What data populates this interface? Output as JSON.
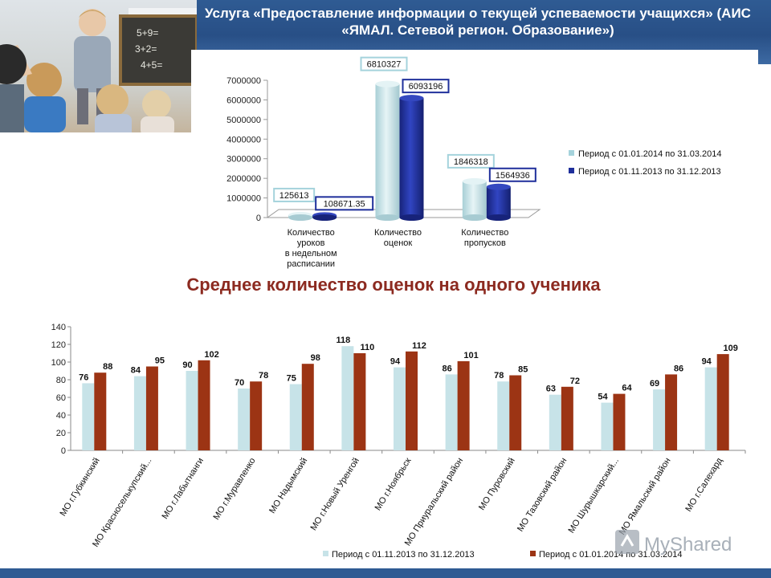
{
  "title": "Услуга «Предоставление информации о текущей успеваемости учащихся» (АИС «ЯМАЛ. Сетевой регион. Образование»)",
  "subtitle": "Среднее количество оценок на одного ученика",
  "watermark": "MyShared",
  "colors": {
    "header": "#2f5b93",
    "light_series": "#c7e3e8",
    "dark_series_3d": "#1f2f9b",
    "dark_series_bar": "#9c3414",
    "subtitle": "#8c2a20"
  },
  "chart_data": [
    {
      "type": "bar",
      "categories": [
        "Количество уроков в недельном расписании",
        "Количество оценок",
        "Количество пропусков"
      ],
      "category_lines": [
        [
          "Количество",
          "уроков",
          "в недельном",
          "расписании"
        ],
        [
          "Количество",
          "оценок"
        ],
        [
          "Количество",
          "пропусков"
        ]
      ],
      "series": [
        {
          "name": "Период с  01.01.2014  по 31.03.2014",
          "values": [
            125613,
            6810327,
            1846318
          ],
          "labels": [
            "125613",
            "6810327",
            "1846318"
          ],
          "color": "#c7e3e8"
        },
        {
          "name": "Период с 01.11.2013  по 31.12.2013",
          "values": [
            108671.35,
            6093196,
            1564936
          ],
          "labels": [
            "108671.35",
            "6093196",
            "1564936"
          ],
          "color": "#1f2f9b"
        }
      ],
      "ylim": [
        0,
        7000000
      ],
      "yticks": [
        "0",
        "1000000",
        "2000000",
        "3000000",
        "4000000",
        "5000000",
        "6000000",
        "7000000"
      ],
      "legend_position": "right",
      "grid": false
    },
    {
      "type": "bar",
      "categories": [
        "МО г.Губкинский",
        "МО Красноселькупский...",
        "МО г.Лабытнанги",
        "МО г.Муравленко",
        "МО Надымский",
        "МО г.Новый Уренгой",
        "МО г.Ноябрьск",
        "МО Приуральский район",
        "МО Пуровский",
        "МО Тазовский район",
        "МО Шурышкарский...",
        "МО Ямальский район",
        "МО г.Салехард"
      ],
      "series": [
        {
          "name": "Период с 01.11.2013  по 31.12.2013",
          "values": [
            76,
            84,
            90,
            70,
            75,
            118,
            94,
            86,
            78,
            63,
            54,
            69,
            94
          ],
          "color": "#c7e3e8"
        },
        {
          "name": "Период с  01.01.2014  по 31.03.2014",
          "values": [
            88,
            95,
            102,
            78,
            98,
            110,
            112,
            101,
            85,
            72,
            64,
            86,
            109
          ],
          "color": "#9c3414"
        }
      ],
      "ylim": [
        0,
        140
      ],
      "yticks": [
        "0",
        "20",
        "40",
        "60",
        "80",
        "100",
        "120",
        "140"
      ],
      "legend_position": "bottom",
      "grid": false
    }
  ]
}
